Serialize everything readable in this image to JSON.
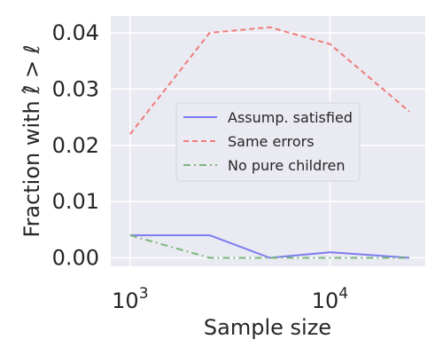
{
  "chart_data": {
    "type": "line",
    "title": "",
    "xlabel": "Sample size",
    "ylabel": "Fraction with ℓ̂ > ℓ",
    "x": [
      1000,
      2500,
      5000,
      10000,
      25000
    ],
    "xscale": "log",
    "xlim": [
      800,
      30000
    ],
    "ylim": [
      -0.0015,
      0.043
    ],
    "xticks": [
      {
        "value": 1000,
        "base": "10",
        "exp": "3"
      },
      {
        "value": 10000,
        "base": "10",
        "exp": "4"
      }
    ],
    "yticks": [
      {
        "value": 0.0,
        "label": "0.00"
      },
      {
        "value": 0.01,
        "label": "0.01"
      },
      {
        "value": 0.02,
        "label": "0.02"
      },
      {
        "value": 0.03,
        "label": "0.03"
      },
      {
        "value": 0.04,
        "label": "0.04"
      }
    ],
    "grid": true,
    "legend_position": "center-right",
    "series": [
      {
        "name": "Assump. satisfied",
        "values": [
          0.004,
          0.004,
          0.0,
          0.001,
          0.0
        ],
        "color": "#7b7bef",
        "dash": "solid"
      },
      {
        "name": "Same errors",
        "values": [
          0.022,
          0.04,
          0.041,
          0.038,
          0.026
        ],
        "color": "#ef7b7b",
        "dash": "dashed"
      },
      {
        "name": "No pure children",
        "values": [
          0.004,
          0.0,
          0.0,
          0.0,
          0.0
        ],
        "color": "#7bb87b",
        "dash": "dashdot"
      }
    ],
    "colors": {
      "plot_background": "#eaeaf2",
      "grid": "#ffffff",
      "text": "#262626"
    }
  }
}
